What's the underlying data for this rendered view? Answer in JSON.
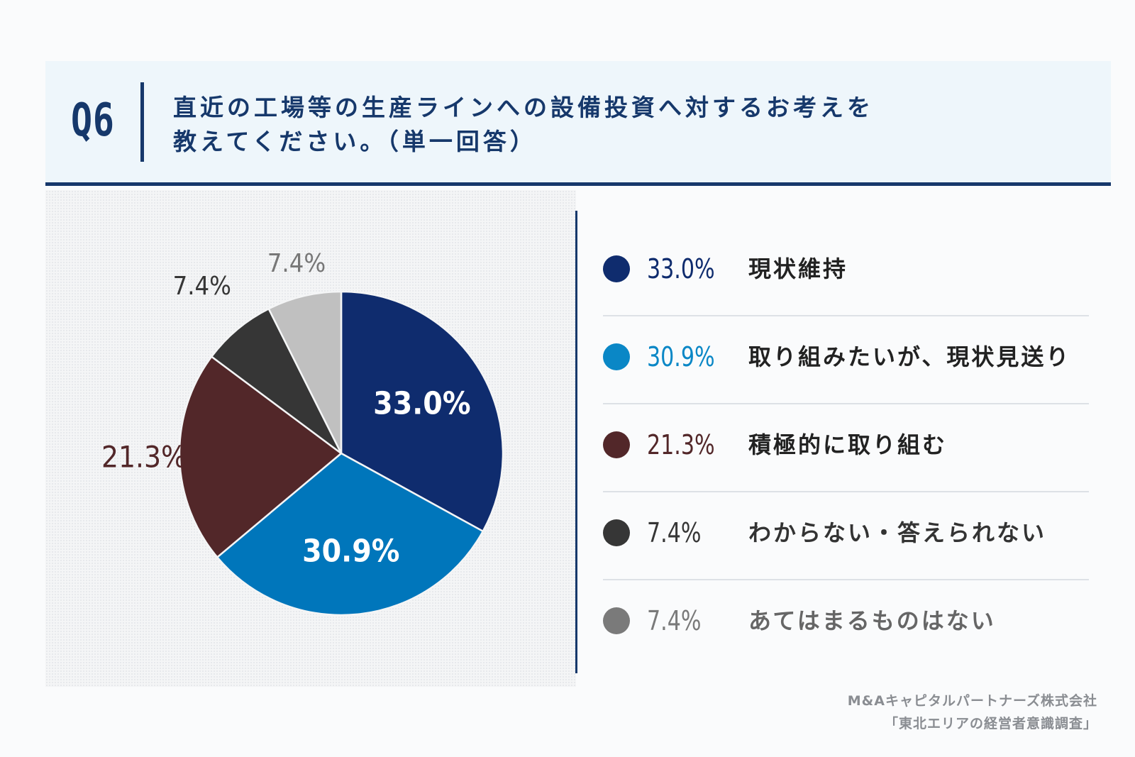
{
  "header": {
    "q_label": "Q6",
    "question_line1": "直近の工場等の生産ラインへの設備投資へ対するお考えを",
    "question_line2": "教えてください。（単一回答）"
  },
  "chart_data": {
    "type": "pie",
    "title": "直近の工場等の生産ラインへの設備投資へ対するお考えを教えてください。（単一回答）",
    "labels": [
      "現状維持",
      "取り組みたいが、現状見送り",
      "積極的に取り組む",
      "わからない・答えられない",
      "あてはまるものはない"
    ],
    "values": [
      33.0,
      30.9,
      21.3,
      7.4,
      7.4
    ],
    "display_values": [
      "33.0%",
      "30.9%",
      "21.3%",
      "7.4%",
      "7.4%"
    ],
    "colors": [
      "#0f2c6e",
      "#0076bb",
      "#522729",
      "#363636",
      "#c0c0c0"
    ],
    "label_colors": [
      "#ffffff",
      "#ffffff",
      "#522729",
      "#363636",
      "#777777"
    ],
    "legend_dot_colors": [
      "#0f2c6e",
      "#0a87c6",
      "#522729",
      "#363636",
      "#7a7a7a"
    ],
    "legend_pct_colors": [
      "#0f2c6e",
      "#0a87c6",
      "#522729",
      "#363636",
      "#7a7a7a"
    ],
    "legend_label_colors": [
      "#222222",
      "#222222",
      "#222222",
      "#333333",
      "#666666"
    ],
    "start_angle_deg": 0,
    "direction": "clockwise",
    "legend_position": "right"
  },
  "footer": {
    "line1": "M&Aキャピタルパートナーズ株式会社",
    "line2": "「東北エリアの経営者意識調査」"
  }
}
